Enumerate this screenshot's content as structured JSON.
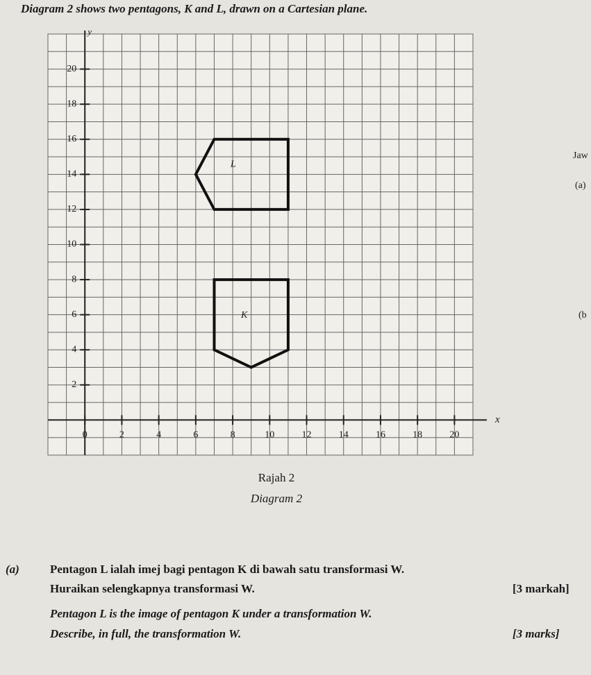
{
  "header": {
    "title": "Diagram 2 shows two pentagons, K and L, drawn on a Cartesian plane."
  },
  "margin_notes": [
    "Jaw",
    "(a)",
    "(b"
  ],
  "diagram": {
    "x_label": "x",
    "y_label": "y",
    "xlim": [
      -2,
      21
    ],
    "ylim": [
      -2,
      22
    ],
    "xticks": [
      0,
      2,
      4,
      6,
      8,
      10,
      12,
      14,
      16,
      18,
      20
    ],
    "yticks": [
      2,
      4,
      6,
      8,
      10,
      12,
      14,
      16,
      18,
      20
    ],
    "shapes": [
      {
        "label": "L",
        "vertices": [
          [
            7,
            16
          ],
          [
            11,
            16
          ],
          [
            11,
            12
          ],
          [
            7,
            12
          ],
          [
            6,
            14
          ]
        ]
      },
      {
        "label": "K",
        "vertices": [
          [
            7,
            8
          ],
          [
            11,
            8
          ],
          [
            11,
            4
          ],
          [
            9,
            3
          ],
          [
            7,
            4
          ]
        ]
      }
    ],
    "caption_malay": "Rajah 2",
    "caption_english": "Diagram 2"
  },
  "question": {
    "number": "(a)",
    "malay_text": "Pentagon L ialah imej bagi pentagon K di bawah satu transformasi W.",
    "malay_instruction": "Huraikan selengkapnya transformasi W.",
    "malay_marks": "[3 markah]",
    "english_text": "Pentagon L is the image of pentagon K under a transformation W.",
    "english_instruction": "Describe, in full, the transformation W.",
    "english_marks": "[3 marks]"
  }
}
